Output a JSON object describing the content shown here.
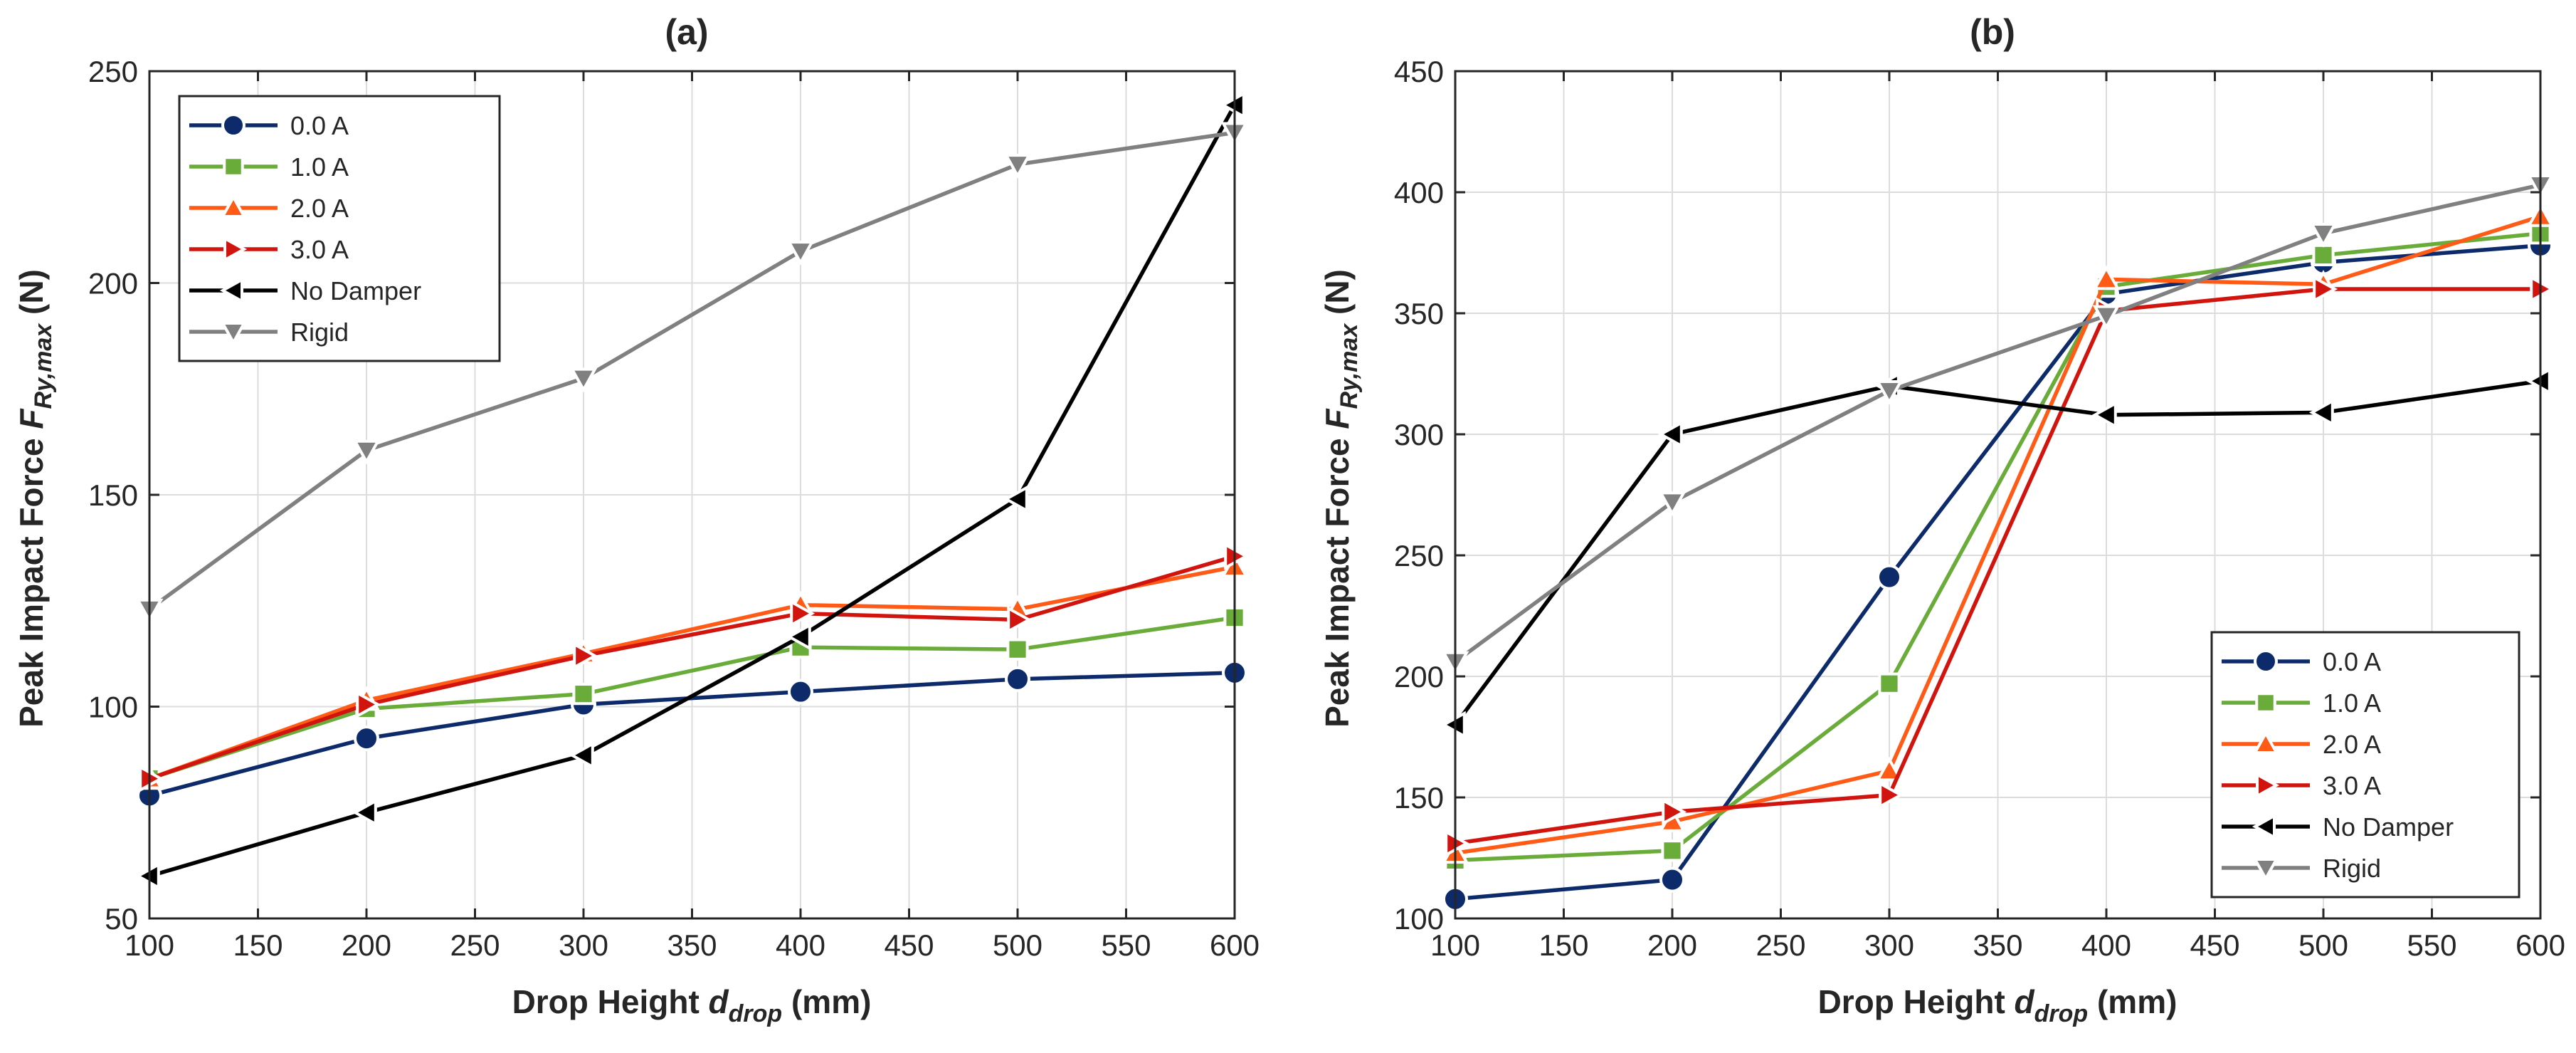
{
  "colors": {
    "0.0 A": "#0d2a6b",
    "1.0 A": "#6aac3a",
    "2.0 A": "#ff5a16",
    "3.0 A": "#d2140e",
    "No Damper": "#000000",
    "Rigid": "#808080"
  },
  "chart_data": [
    {
      "type": "line",
      "title": "(a)",
      "xlabel": "Drop Height  d_drop (mm)",
      "ylabel": "Peak Impact Force  F_Ry,max (N)",
      "x": [
        100,
        200,
        300,
        400,
        500,
        600
      ],
      "xlim": [
        100,
        600
      ],
      "ylim": [
        50,
        250
      ],
      "xticks": [
        100,
        150,
        200,
        250,
        300,
        350,
        400,
        450,
        500,
        550,
        600
      ],
      "yticks": [
        50,
        100,
        150,
        200,
        250
      ],
      "grid": true,
      "legend_position": "top-left",
      "series": [
        {
          "name": "0.0 A",
          "marker": "circle",
          "values": [
            79,
            92.5,
            100.5,
            103.5,
            106.5,
            108
          ]
        },
        {
          "name": "1.0 A",
          "marker": "square",
          "values": [
            83,
            99.5,
            103,
            114,
            113.5,
            121
          ]
        },
        {
          "name": "2.0 A",
          "marker": "triangle-up",
          "values": [
            83,
            101.5,
            112.5,
            124,
            123,
            133
          ]
        },
        {
          "name": "3.0 A",
          "marker": "triangle-right",
          "values": [
            83,
            100.5,
            112,
            122,
            120.5,
            135.5
          ]
        },
        {
          "name": "No Damper",
          "marker": "triangle-left",
          "values": [
            60,
            75,
            88.5,
            116.5,
            149,
            242
          ]
        },
        {
          "name": "Rigid",
          "marker": "triangle-down",
          "values": [
            123,
            160.5,
            177.5,
            207.5,
            228,
            235.5
          ]
        }
      ]
    },
    {
      "type": "line",
      "title": "(b)",
      "xlabel": "Drop Height  d_drop (mm)",
      "ylabel": "Peak Impact Force  F_Ry,max (N)",
      "x": [
        100,
        200,
        300,
        400,
        500,
        600
      ],
      "xlim": [
        100,
        600
      ],
      "ylim": [
        100,
        450
      ],
      "xticks": [
        100,
        150,
        200,
        250,
        300,
        350,
        400,
        450,
        500,
        550,
        600
      ],
      "yticks": [
        100,
        150,
        200,
        250,
        300,
        350,
        400,
        450
      ],
      "grid": true,
      "legend_position": "bottom-right",
      "series": [
        {
          "name": "0.0 A",
          "marker": "circle",
          "values": [
            108,
            116,
            241,
            358,
            371,
            378
          ]
        },
        {
          "name": "1.0 A",
          "marker": "square",
          "values": [
            124,
            128,
            197,
            361,
            374,
            383
          ]
        },
        {
          "name": "2.0 A",
          "marker": "triangle-up",
          "values": [
            127,
            140,
            161,
            364,
            362,
            390
          ]
        },
        {
          "name": "3.0 A",
          "marker": "triangle-right",
          "values": [
            131,
            144,
            151,
            351,
            360,
            360
          ]
        },
        {
          "name": "No Damper",
          "marker": "triangle-left",
          "values": [
            180,
            300,
            320,
            308,
            309,
            322
          ]
        },
        {
          "name": "Rigid",
          "marker": "triangle-down",
          "values": [
            206,
            272,
            318,
            349,
            383,
            403
          ]
        }
      ]
    }
  ]
}
